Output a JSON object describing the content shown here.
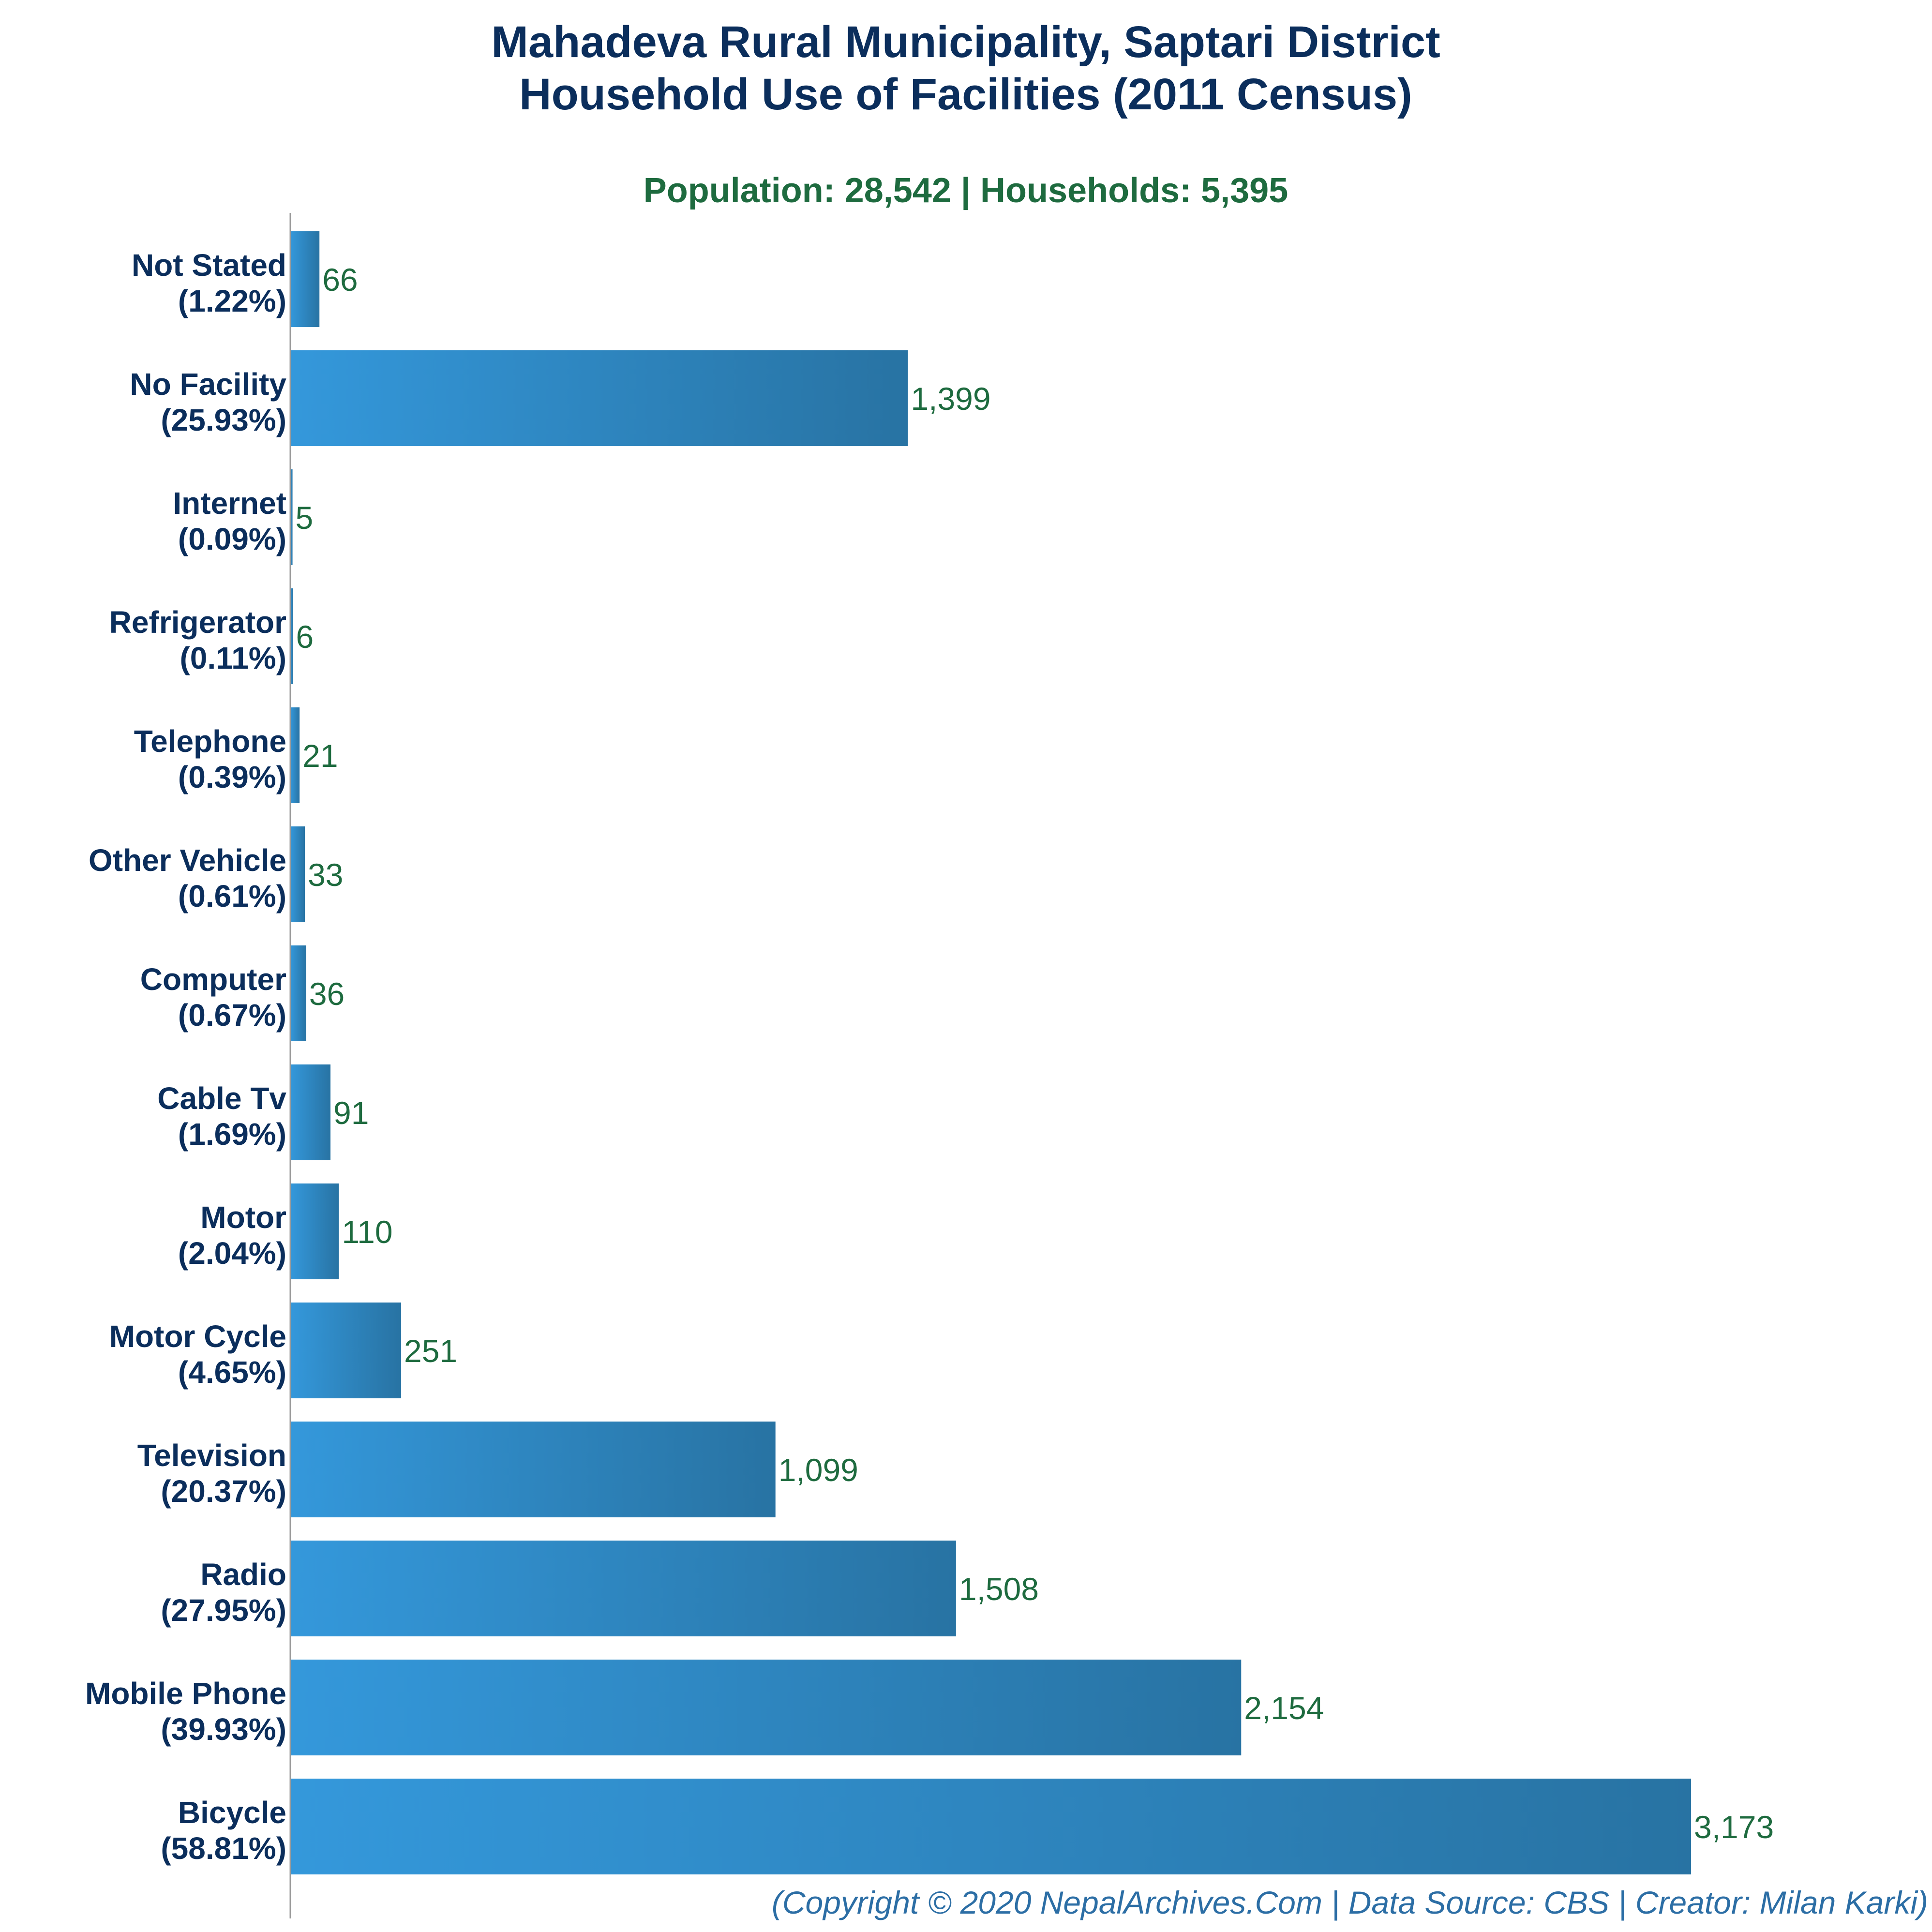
{
  "title_line1": "Mahadeva Rural Municipality, Saptari District",
  "title_line2": "Household Use of Facilities (2011 Census)",
  "subtitle": "Population: 28,542 | Households: 5,395",
  "footer": "(Copyright © 2020 NepalArchives.Com | Data Source: CBS | Creator: Milan Karki)",
  "colors": {
    "title": "#0b2e5c",
    "subtitle": "#1e6b3f",
    "value_label": "#1e6b3f",
    "bar_light": "#3498db",
    "bar_dark": "#2873a3",
    "footer": "#2c6ea5",
    "axis": "#999999"
  },
  "chart_data": {
    "type": "bar",
    "orientation": "horizontal",
    "xlim": [
      0,
      3173
    ],
    "grid": false,
    "categories": [
      {
        "name": "Not Stated",
        "pct": "(1.22%)",
        "value": 66,
        "value_label": "66"
      },
      {
        "name": "No Facility",
        "pct": "(25.93%)",
        "value": 1399,
        "value_label": "1,399"
      },
      {
        "name": "Internet",
        "pct": "(0.09%)",
        "value": 5,
        "value_label": "5"
      },
      {
        "name": "Refrigerator",
        "pct": "(0.11%)",
        "value": 6,
        "value_label": "6"
      },
      {
        "name": "Telephone",
        "pct": "(0.39%)",
        "value": 21,
        "value_label": "21"
      },
      {
        "name": "Other Vehicle",
        "pct": "(0.61%)",
        "value": 33,
        "value_label": "33"
      },
      {
        "name": "Computer",
        "pct": "(0.67%)",
        "value": 36,
        "value_label": "36"
      },
      {
        "name": "Cable Tv",
        "pct": "(1.69%)",
        "value": 91,
        "value_label": "91"
      },
      {
        "name": "Motor",
        "pct": "(2.04%)",
        "value": 110,
        "value_label": "110"
      },
      {
        "name": "Motor Cycle",
        "pct": "(4.65%)",
        "value": 251,
        "value_label": "251"
      },
      {
        "name": "Television",
        "pct": "(20.37%)",
        "value": 1099,
        "value_label": "1,099"
      },
      {
        "name": "Radio",
        "pct": "(27.95%)",
        "value": 1508,
        "value_label": "1,508"
      },
      {
        "name": "Mobile Phone",
        "pct": "(39.93%)",
        "value": 2154,
        "value_label": "2,154"
      },
      {
        "name": "Bicycle",
        "pct": "(58.81%)",
        "value": 3173,
        "value_label": "3,173"
      }
    ]
  }
}
